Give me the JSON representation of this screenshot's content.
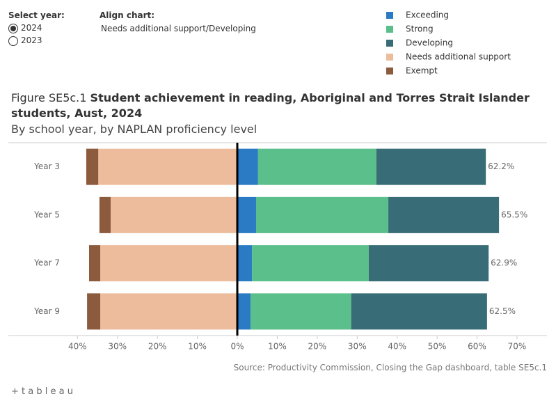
{
  "controls": {
    "year_label": "Select year:",
    "years": [
      "2024",
      "2023"
    ],
    "selected_year": "2024",
    "align_label": "Align chart:",
    "align_value": "Needs additional support/Developing"
  },
  "chart_data": {
    "type": "diverging_bar",
    "title_prefix": "Figure SE5c.1",
    "title": "Student achievement in reading, Aboriginal and Torres Strait Islander students, Aust, 2024",
    "subtitle": "By school year, by NAPLAN proficiency level",
    "categories": [
      "Year 3",
      "Year 5",
      "Year 7",
      "Year 9"
    ],
    "series": [
      {
        "name": "Exceeding",
        "color": "#2a7bc4",
        "values": [
          5.2,
          4.7,
          3.7,
          3.3
        ]
      },
      {
        "name": "Strong",
        "color": "#5bbf8b",
        "values": [
          29.6,
          33.1,
          29.2,
          25.2
        ]
      },
      {
        "name": "Developing",
        "color": "#386c76",
        "values": [
          27.4,
          27.7,
          30.0,
          34.0
        ]
      },
      {
        "name": "Needs additional support",
        "color": "#ecbc9c",
        "values": [
          -34.8,
          -31.7,
          -34.3,
          -34.3
        ]
      },
      {
        "name": "Exempt",
        "color": "#8c5a3c",
        "values": [
          -3.0,
          -2.8,
          -2.8,
          -3.3
        ]
      }
    ],
    "totals": [
      62.2,
      65.5,
      62.9,
      62.5
    ],
    "total_labels": [
      "62.2%",
      "65.5%",
      "62.9%",
      "62.5%"
    ],
    "xlim": [
      -57.3,
      77.5
    ],
    "xticks": [
      {
        "value": -40,
        "label": "40%"
      },
      {
        "value": -30,
        "label": "30%"
      },
      {
        "value": -20,
        "label": "20%"
      },
      {
        "value": -10,
        "label": "10%"
      },
      {
        "value": 0,
        "label": "0%"
      },
      {
        "value": 10,
        "label": "10%"
      },
      {
        "value": 20,
        "label": "20%"
      },
      {
        "value": 30,
        "label": "30%"
      },
      {
        "value": 40,
        "label": "40%"
      },
      {
        "value": 50,
        "label": "50%"
      },
      {
        "value": 60,
        "label": "60%"
      },
      {
        "value": 70,
        "label": "70%"
      }
    ],
    "source": "Source: Productivity Commission, Closing the Gap dashboard, table SE5c.1"
  },
  "footer": {
    "logo": "+ t a b l e a u"
  }
}
